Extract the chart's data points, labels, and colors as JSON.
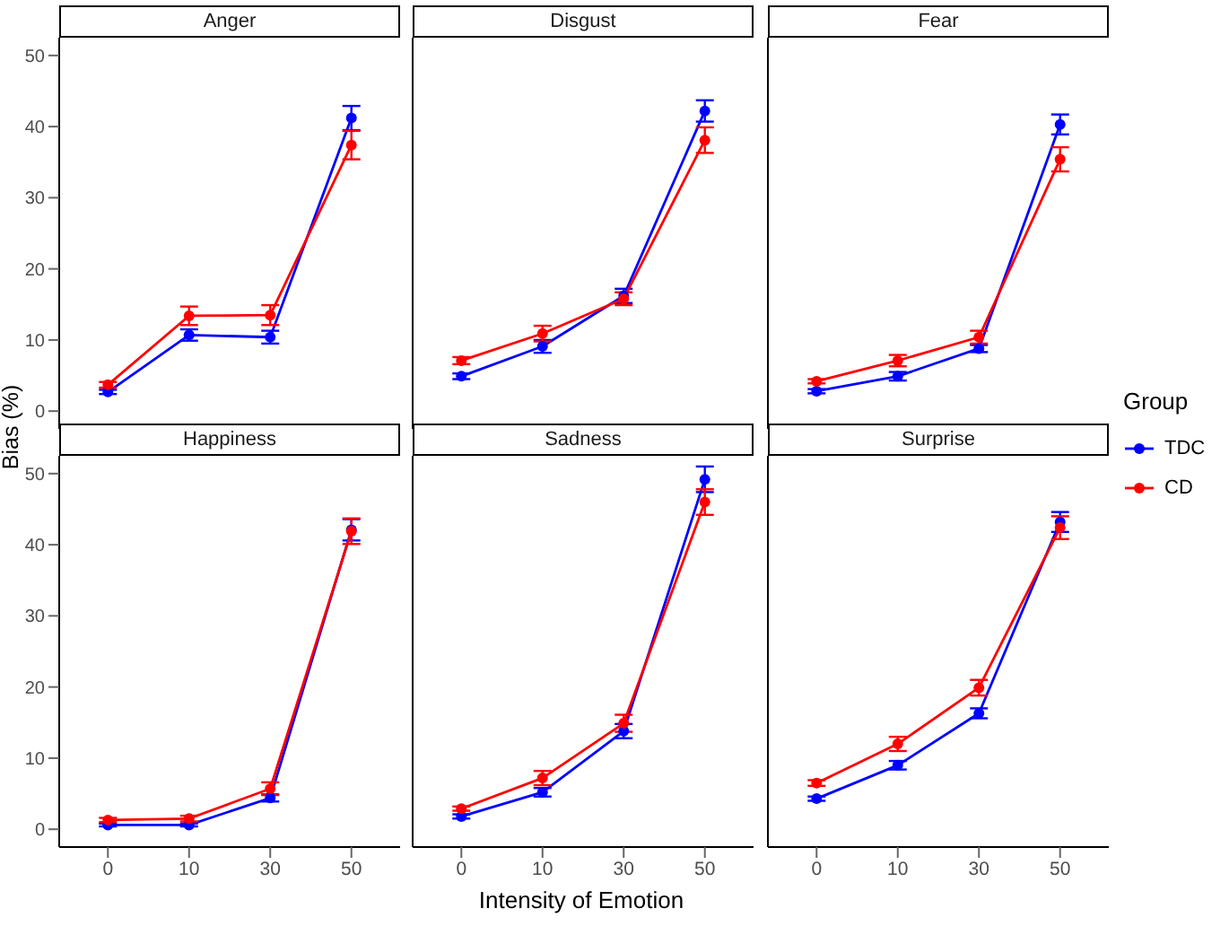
{
  "chart_data": [
    {
      "type": "line",
      "title": "Anger",
      "ylabel": "Bias (%)",
      "categories": [
        "0",
        "10",
        "30",
        "50"
      ],
      "ylim": [
        -2.5,
        52.5
      ],
      "yticks": [
        0,
        10,
        20,
        30,
        40,
        50
      ],
      "tick_labels": "y",
      "marker": "circle",
      "grid": false,
      "series": [
        {
          "color": "#0000ff",
          "values": [
            2.7,
            10.7,
            10.4,
            41.2
          ],
          "errors": [
            0.3,
            0.8,
            0.9,
            1.7
          ]
        },
        {
          "color": "#ff0000",
          "values": [
            3.7,
            13.4,
            13.5,
            37.4
          ],
          "errors": [
            0.4,
            1.3,
            1.4,
            2
          ]
        }
      ]
    },
    {
      "type": "line",
      "title": "Disgust",
      "categories": [
        "0",
        "10",
        "30",
        "50"
      ],
      "ylim": [
        -2.5,
        52.5
      ],
      "yticks": [
        0,
        10,
        20,
        30,
        40,
        50
      ],
      "tick_labels": false,
      "marker": "circle",
      "grid": false,
      "series": [
        {
          "color": "#0000ff",
          "values": [
            4.9,
            9.1,
            16.2,
            42.2
          ],
          "errors": [
            0.4,
            0.9,
            1,
            1.5
          ]
        },
        {
          "color": "#ff0000",
          "values": [
            7.1,
            10.9,
            15.8,
            38.1
          ],
          "errors": [
            0.5,
            1.1,
            0.9,
            1.8
          ]
        }
      ]
    },
    {
      "type": "line",
      "title": "Fear",
      "categories": [
        "0",
        "10",
        "30",
        "50"
      ],
      "ylim": [
        -2.5,
        52.5
      ],
      "yticks": [
        0,
        10,
        20,
        30,
        40,
        50
      ],
      "tick_labels": false,
      "marker": "circle",
      "grid": false,
      "series": [
        {
          "color": "#0000ff",
          "values": [
            2.8,
            4.9,
            8.8,
            40.3
          ],
          "errors": [
            0.3,
            0.6,
            0.5,
            1.4
          ]
        },
        {
          "color": "#ff0000",
          "values": [
            4.2,
            7.1,
            10.4,
            35.4
          ],
          "errors": [
            0.3,
            0.8,
            0.9,
            1.7
          ]
        }
      ]
    },
    {
      "type": "line",
      "title": "Happiness",
      "categories": [
        "0",
        "10",
        "30",
        "50"
      ],
      "ylim": [
        -2.5,
        52.5
      ],
      "yticks": [
        0,
        10,
        20,
        30,
        40,
        50
      ],
      "marker": "circle",
      "grid": false,
      "series": [
        {
          "color": "#0000ff",
          "values": [
            0.6,
            0.6,
            4.4,
            42.1
          ],
          "errors": [
            0.2,
            0.2,
            0.5,
            1.5
          ]
        },
        {
          "color": "#ff0000",
          "values": [
            1.3,
            1.5,
            5.7,
            41.9
          ],
          "errors": [
            0.3,
            0.4,
            0.9,
            1.8
          ]
        }
      ]
    },
    {
      "type": "line",
      "title": "Sadness",
      "xlabel": "Intensity of Emotion",
      "categories": [
        "0",
        "10",
        "30",
        "50"
      ],
      "ylim": [
        -2.5,
        52.5
      ],
      "yticks": [
        0,
        10,
        20,
        30,
        40,
        50
      ],
      "tick_labels": "x",
      "marker": "circle",
      "grid": false,
      "series": [
        {
          "color": "#0000ff",
          "values": [
            1.8,
            5.2,
            13.8,
            49.2
          ],
          "errors": [
            0.3,
            0.6,
            1,
            1.8
          ]
        },
        {
          "color": "#ff0000",
          "values": [
            2.9,
            7.2,
            14.9,
            46
          ],
          "errors": [
            0.3,
            1,
            1.2,
            1.8
          ]
        }
      ]
    },
    {
      "type": "line",
      "title": "Surprise",
      "categories": [
        "0",
        "10",
        "30",
        "50"
      ],
      "ylim": [
        -2.5,
        52.5
      ],
      "yticks": [
        0,
        10,
        20,
        30,
        40,
        50
      ],
      "tick_labels": "x",
      "marker": "circle",
      "grid": false,
      "legend": "right",
      "legend_title": "Group",
      "series": [
        {
          "name": "TDC",
          "color": "#0000ff",
          "values": [
            4.3,
            9,
            16.3,
            43.2
          ],
          "errors": [
            0.3,
            0.6,
            0.7,
            1.4
          ]
        },
        {
          "name": "CD",
          "color": "#ff0000",
          "values": [
            6.5,
            12,
            19.9,
            42.4
          ],
          "errors": [
            0.4,
            1,
            1.1,
            1.6
          ]
        }
      ]
    }
  ]
}
